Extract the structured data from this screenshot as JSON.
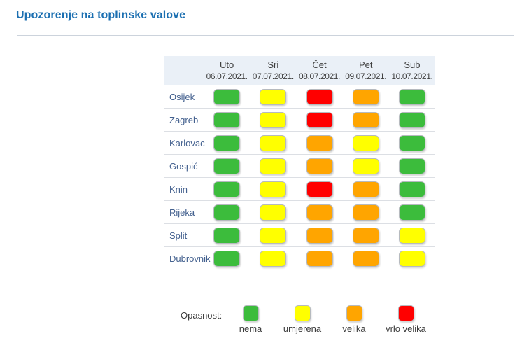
{
  "page": {
    "title": "Upozorenje na toplinske valove"
  },
  "colors": {
    "title_blue": "#1b6fb1",
    "header_bg": "#eaf0f7",
    "city_text": "#44618f",
    "nema_green": "#3cbc3c",
    "umjerena_yellow": "#ffff00",
    "velika_orange": "#ffa500",
    "vrlo_velika_red": "#ff0000"
  },
  "legend": {
    "label": "Opasnost:",
    "items": [
      {
        "level": "nema",
        "label": "nema",
        "color": "#3cbc3c"
      },
      {
        "level": "umjerena",
        "label": "umjerena",
        "color": "#ffff00"
      },
      {
        "level": "velika",
        "label": "velika",
        "color": "#ffa500"
      },
      {
        "level": "vrlo velika",
        "label": "vrlo velika",
        "color": "#ff0000"
      }
    ]
  },
  "chart_data": {
    "type": "heatmap",
    "title": "Upozorenje na toplinske valove",
    "legend_title": "Opasnost:",
    "levels_order": [
      "nema",
      "umjerena",
      "velika",
      "vrlo velika"
    ],
    "level_colors": {
      "nema": "#3cbc3c",
      "umjerena": "#ffff00",
      "velika": "#ffa500",
      "vrlo velika": "#ff0000"
    },
    "columns": [
      {
        "day": "Uto",
        "date": "06.07.2021."
      },
      {
        "day": "Sri",
        "date": "07.07.2021."
      },
      {
        "day": "Čet",
        "date": "08.07.2021."
      },
      {
        "day": "Pet",
        "date": "09.07.2021."
      },
      {
        "day": "Sub",
        "date": "10.07.2021."
      }
    ],
    "rows": [
      {
        "city": "Osijek",
        "levels": [
          "nema",
          "umjerena",
          "vrlo velika",
          "velika",
          "nema"
        ]
      },
      {
        "city": "Zagreb",
        "levels": [
          "nema",
          "umjerena",
          "vrlo velika",
          "velika",
          "nema"
        ]
      },
      {
        "city": "Karlovac",
        "levels": [
          "nema",
          "umjerena",
          "velika",
          "umjerena",
          "nema"
        ]
      },
      {
        "city": "Gospić",
        "levels": [
          "nema",
          "umjerena",
          "velika",
          "umjerena",
          "nema"
        ]
      },
      {
        "city": "Knin",
        "levels": [
          "nema",
          "umjerena",
          "vrlo velika",
          "velika",
          "nema"
        ]
      },
      {
        "city": "Rijeka",
        "levels": [
          "nema",
          "umjerena",
          "velika",
          "velika",
          "nema"
        ]
      },
      {
        "city": "Split",
        "levels": [
          "nema",
          "umjerena",
          "velika",
          "velika",
          "umjerena"
        ]
      },
      {
        "city": "Dubrovnik",
        "levels": [
          "nema",
          "umjerena",
          "velika",
          "velika",
          "umjerena"
        ]
      }
    ]
  }
}
